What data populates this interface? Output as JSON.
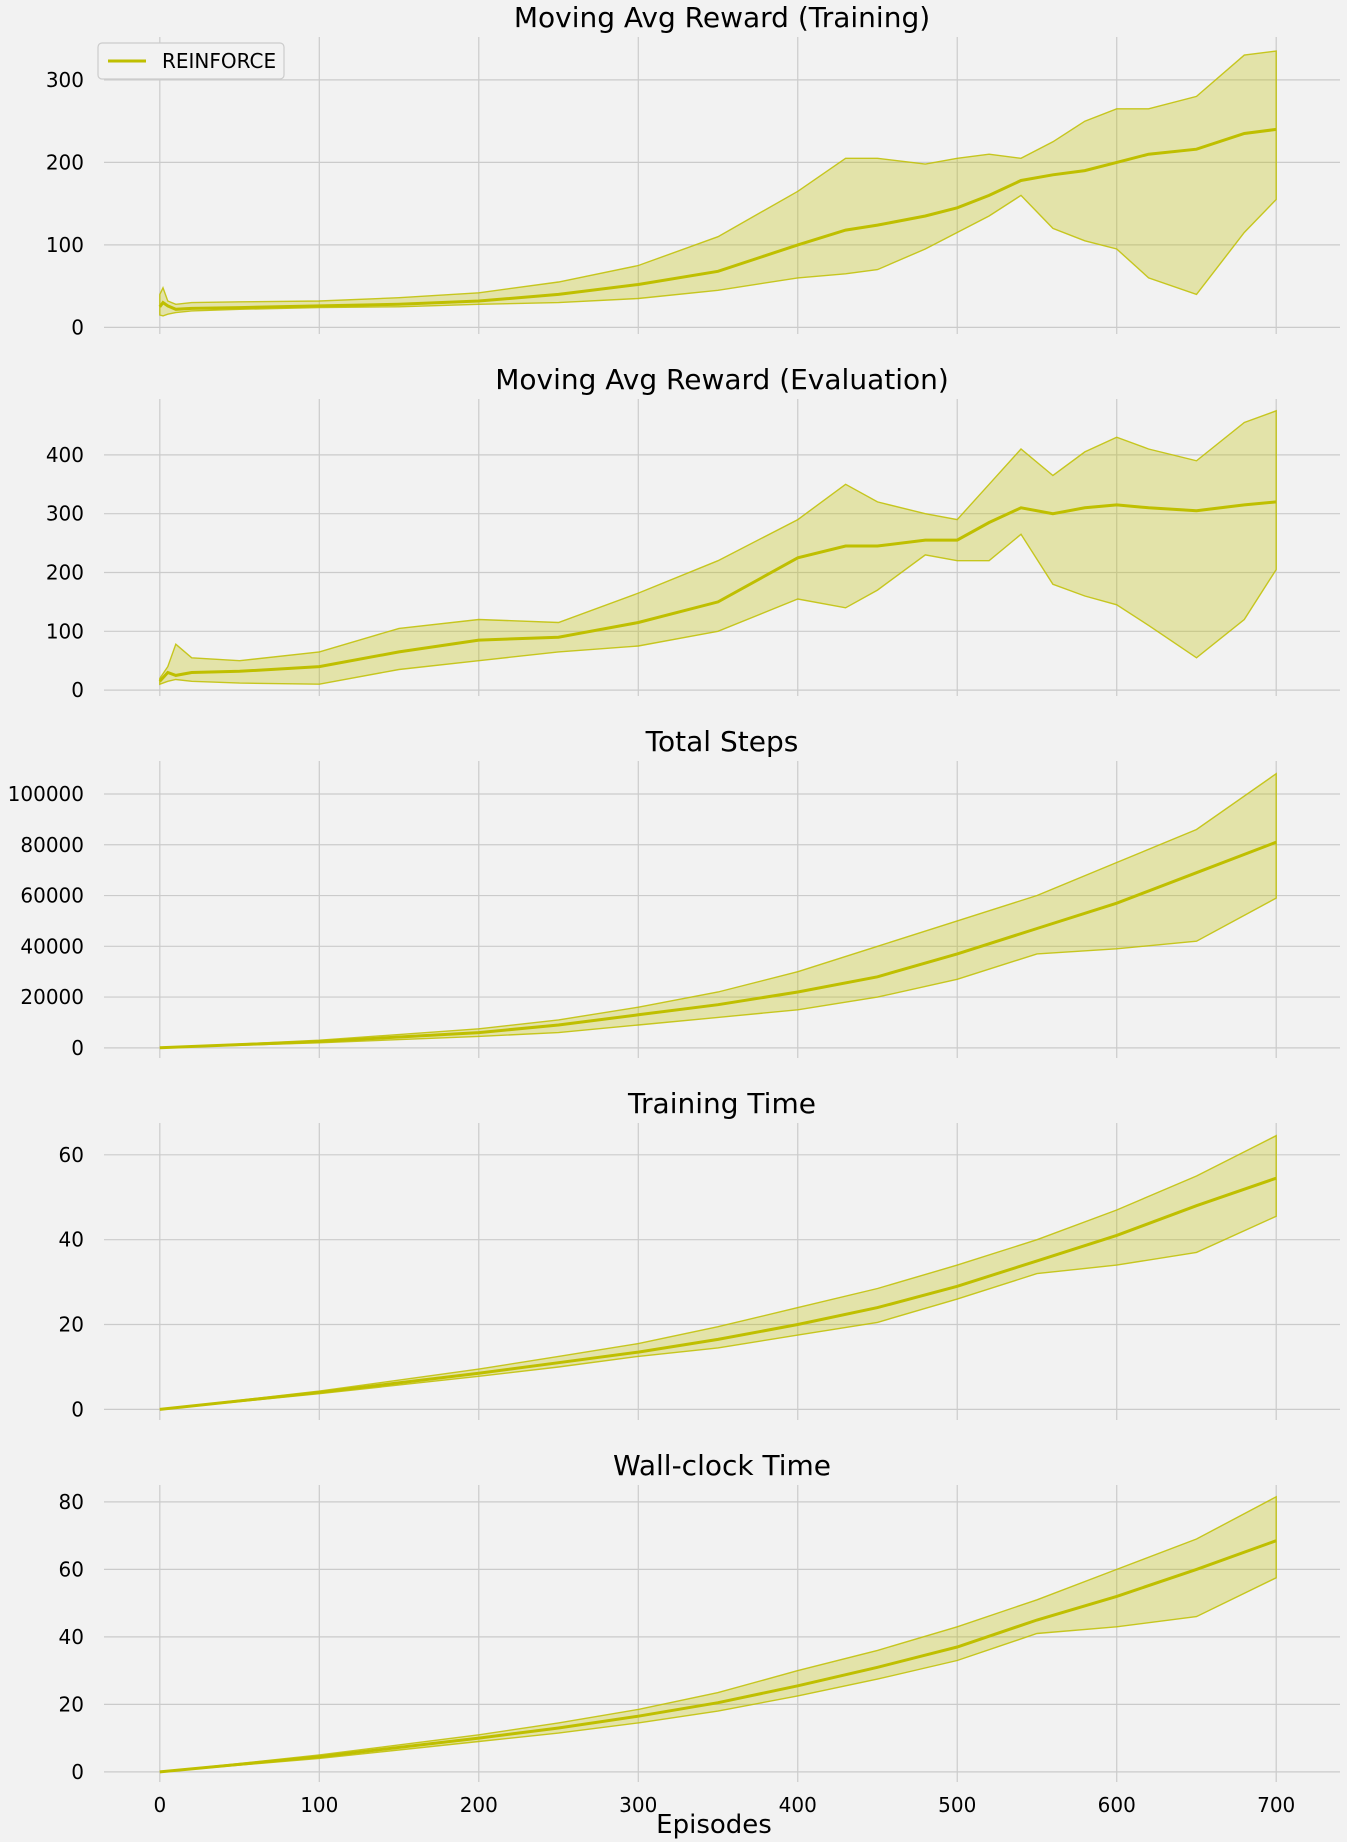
{
  "figure": {
    "xlabel": "Episodes",
    "background": "#f2f2f2",
    "color": "#bfbf00"
  },
  "chart_data": [
    {
      "type": "line",
      "title": "Moving Avg Reward (Training)",
      "xlim": [
        -35,
        740
      ],
      "ylim": [
        -8,
        352
      ],
      "xticks": [
        0,
        100,
        200,
        300,
        400,
        500,
        600,
        700
      ],
      "yticks": [
        0,
        100,
        200,
        300
      ],
      "legend": {
        "entries": [
          "REINFORCE"
        ],
        "position": "top-left"
      },
      "series": [
        {
          "name": "REINFORCE",
          "x": [
            0,
            2,
            5,
            10,
            20,
            50,
            100,
            150,
            200,
            250,
            300,
            350,
            400,
            430,
            450,
            480,
            500,
            520,
            540,
            560,
            580,
            600,
            620,
            650,
            680,
            700
          ],
          "mean": [
            25,
            30,
            26,
            22,
            23,
            24,
            26,
            28,
            32,
            40,
            52,
            68,
            100,
            118,
            124,
            135,
            145,
            160,
            178,
            185,
            190,
            200,
            210,
            216,
            235,
            240
          ],
          "upper": [
            40,
            48,
            32,
            28,
            30,
            31,
            32,
            36,
            42,
            55,
            75,
            110,
            165,
            205,
            205,
            198,
            205,
            210,
            205,
            225,
            250,
            265,
            265,
            280,
            330,
            335
          ],
          "lower": [
            15,
            14,
            16,
            18,
            20,
            22,
            24,
            25,
            28,
            30,
            35,
            45,
            60,
            65,
            70,
            95,
            115,
            135,
            160,
            120,
            105,
            95,
            60,
            40,
            115,
            155
          ]
        }
      ]
    },
    {
      "type": "line",
      "title": "Moving Avg Reward (Evaluation)",
      "xlim": [
        -35,
        740
      ],
      "ylim": [
        -10,
        495
      ],
      "xticks": [
        0,
        100,
        200,
        300,
        400,
        500,
        600,
        700
      ],
      "yticks": [
        0,
        100,
        200,
        300,
        400
      ],
      "series": [
        {
          "name": "REINFORCE",
          "x": [
            0,
            5,
            10,
            20,
            50,
            100,
            150,
            200,
            250,
            300,
            350,
            400,
            430,
            450,
            480,
            500,
            520,
            540,
            560,
            580,
            600,
            620,
            650,
            680,
            700
          ],
          "mean": [
            15,
            30,
            25,
            30,
            32,
            40,
            65,
            85,
            90,
            115,
            150,
            225,
            245,
            245,
            255,
            255,
            285,
            310,
            300,
            310,
            315,
            310,
            305,
            315,
            320
          ],
          "upper": [
            20,
            40,
            78,
            55,
            50,
            65,
            105,
            120,
            115,
            165,
            220,
            290,
            350,
            320,
            300,
            290,
            350,
            410,
            365,
            405,
            430,
            410,
            390,
            455,
            475
          ],
          "lower": [
            10,
            15,
            18,
            15,
            12,
            10,
            35,
            50,
            65,
            75,
            100,
            155,
            140,
            170,
            230,
            220,
            220,
            265,
            180,
            160,
            145,
            110,
            55,
            120,
            205
          ]
        }
      ]
    },
    {
      "type": "line",
      "title": "Total Steps",
      "xlim": [
        -35,
        740
      ],
      "ylim": [
        -4000,
        113000
      ],
      "xticks": [
        0,
        100,
        200,
        300,
        400,
        500,
        600,
        700
      ],
      "yticks": [
        0,
        20000,
        40000,
        60000,
        80000,
        100000
      ],
      "series": [
        {
          "name": "REINFORCE",
          "x": [
            0,
            100,
            200,
            250,
            300,
            350,
            400,
            450,
            500,
            550,
            600,
            650,
            700
          ],
          "mean": [
            0,
            2500,
            6000,
            9000,
            13000,
            17000,
            22000,
            28000,
            37000,
            47000,
            57000,
            69000,
            81000
          ],
          "upper": [
            0,
            3000,
            7500,
            11000,
            16000,
            22000,
            30000,
            40000,
            50000,
            60000,
            73000,
            86000,
            108000
          ],
          "lower": [
            0,
            2000,
            4500,
            6000,
            9000,
            12000,
            15000,
            20000,
            27000,
            37000,
            39000,
            42000,
            59000
          ]
        }
      ]
    },
    {
      "type": "line",
      "title": "Training Time",
      "xlim": [
        -35,
        740
      ],
      "ylim": [
        -2.5,
        67.5
      ],
      "xticks": [
        0,
        100,
        200,
        300,
        400,
        500,
        600,
        700
      ],
      "yticks": [
        0,
        20,
        40,
        60
      ],
      "series": [
        {
          "name": "REINFORCE",
          "x": [
            0,
            100,
            200,
            250,
            300,
            350,
            400,
            450,
            500,
            550,
            600,
            650,
            700
          ],
          "mean": [
            0,
            4,
            8.5,
            11,
            13.5,
            16.5,
            20,
            24,
            29,
            35,
            41,
            48,
            54.5
          ],
          "upper": [
            0,
            4.3,
            9.5,
            12.5,
            15.5,
            19.5,
            24,
            28.5,
            34,
            40,
            47,
            55,
            64.5
          ],
          "lower": [
            0,
            3.7,
            7.8,
            10,
            12.5,
            14.5,
            17.5,
            20.5,
            26,
            32,
            34,
            37,
            45.5
          ]
        }
      ]
    },
    {
      "type": "line",
      "title": "Wall-clock Time",
      "xlim": [
        -35,
        740
      ],
      "ylim": [
        -3,
        85
      ],
      "xticks": [
        0,
        100,
        200,
        300,
        400,
        500,
        600,
        700
      ],
      "yticks": [
        0,
        20,
        40,
        60,
        80
      ],
      "series": [
        {
          "name": "REINFORCE",
          "x": [
            0,
            100,
            200,
            250,
            300,
            350,
            400,
            450,
            500,
            550,
            600,
            650,
            700
          ],
          "mean": [
            0,
            4.5,
            10,
            13,
            16.5,
            20.5,
            25.5,
            31,
            37,
            45,
            52,
            60,
            68.5
          ],
          "upper": [
            0,
            5,
            11,
            14.5,
            18.5,
            23.5,
            30,
            36,
            43,
            51,
            60,
            69,
            81.5
          ],
          "lower": [
            0,
            4,
            9,
            11.5,
            14.5,
            18,
            22.5,
            27.5,
            33,
            41,
            43,
            46,
            57.5
          ]
        }
      ]
    }
  ]
}
